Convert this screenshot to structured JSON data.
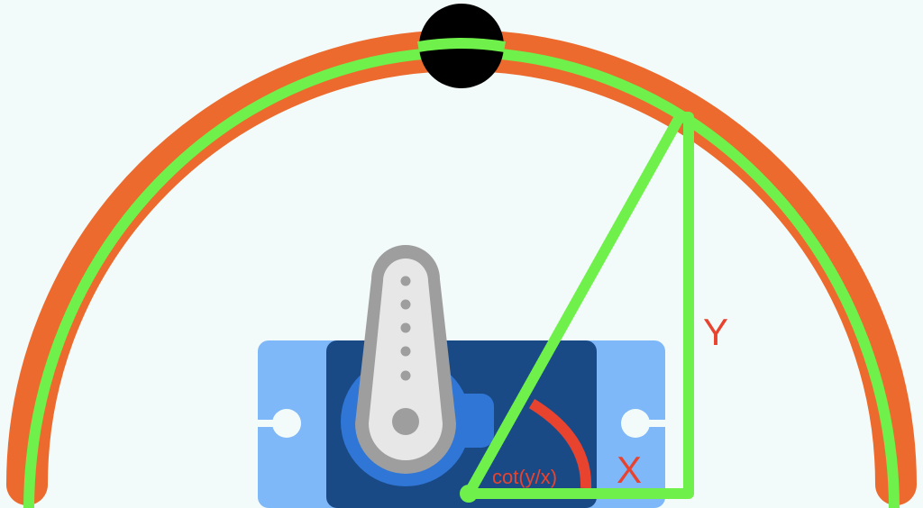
{
  "labels": {
    "y": "Y",
    "x": "X",
    "angle": "cot(y/x)"
  },
  "colors": {
    "background": "#f2fbf9",
    "arc_outer": "#ec6a2d",
    "arc_inner": "#6ff04a",
    "triangle": "#6ff04a",
    "label_text": "#e8432f",
    "angle_arc": "#e8432f",
    "marker": "#000000",
    "servo_mount": "#7eb8f8",
    "servo_body": "#1a4a86",
    "servo_hub": "#2f76d6",
    "horn_outline": "#9e9e9e",
    "horn_fill": "#e7e7e7",
    "horn_holes": "#9e9e9e"
  },
  "icons": {
    "servo": "servo-motor-icon",
    "marker": "position-marker-icon"
  }
}
